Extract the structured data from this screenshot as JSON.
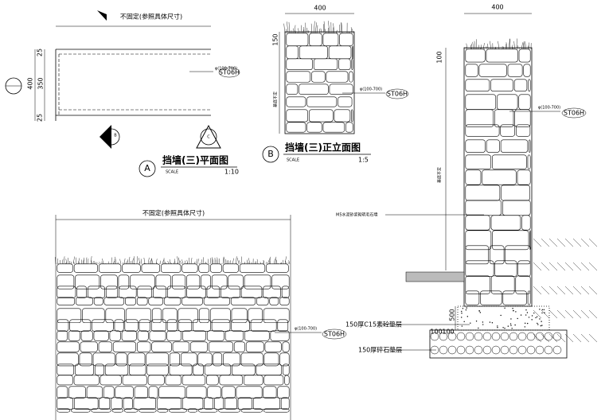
{
  "plan": {
    "width_note": "不固定(参照具体尺寸)",
    "dims": [
      "25",
      "400",
      "350",
      "25"
    ],
    "stone_size": "φ(100-700)",
    "material": "ST06H",
    "markers": [
      "B",
      "C"
    ],
    "label": "A",
    "title": "挡墙(三)平面图",
    "scale_word": "SCALE",
    "scale": "1:10"
  },
  "elevation": {
    "width": "400",
    "top": "150",
    "base_note": "基底不定",
    "stone_size": "φ(100-700)",
    "material": "ST06H",
    "label": "B",
    "title": "挡墙(三)正立面图",
    "scale_word": "SCALE",
    "scale": "1:5"
  },
  "section": {
    "width": "400",
    "top": "100",
    "base_note": "基底不定",
    "stone_size": "φ(100-700)",
    "material": "ST06H",
    "wall_note": "M5水泥砂浆砌筑毛石墙",
    "footing_height": "500",
    "concrete_note": "150厚C15素砼垫层",
    "offset_left": "100",
    "offset_right": "100",
    "gravel_note": "150厚碎石垫层"
  },
  "front": {
    "width_note": "不固定(参照具体尺寸)",
    "stone_size": "φ(100-700)",
    "material": "ST06H"
  }
}
